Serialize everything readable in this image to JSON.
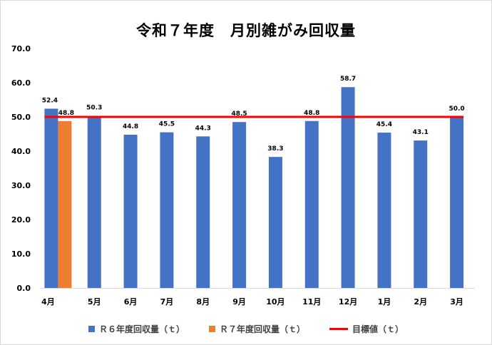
{
  "title": "令和７年度　月別雑がみ回収量",
  "chart_data": {
    "type": "bar",
    "categories": [
      "4月",
      "5月",
      "6月",
      "7月",
      "8月",
      "9月",
      "10月",
      "11月",
      "12月",
      "1月",
      "2月",
      "3月"
    ],
    "series": [
      {
        "name": "Ｒ６年度回収量（ｔ）",
        "values": [
          52.4,
          50.3,
          44.8,
          45.5,
          44.3,
          48.5,
          38.3,
          48.8,
          58.7,
          45.4,
          43.1,
          50.0
        ],
        "labels": [
          "52.4",
          "50.3",
          "44.8",
          "45.5",
          "44.3",
          "48.5",
          "38.3",
          "48.8",
          "58.7",
          "45.4",
          "43.1",
          "50.0"
        ],
        "color": "#4472c4"
      },
      {
        "name": "Ｒ７年度回収量（ｔ）",
        "values": [
          48.8,
          null,
          null,
          null,
          null,
          null,
          null,
          null,
          null,
          null,
          null,
          null
        ],
        "labels": [
          "48.8",
          null,
          null,
          null,
          null,
          null,
          null,
          null,
          null,
          null,
          null,
          null
        ],
        "color": "#ed7d31"
      }
    ],
    "target": {
      "name": "目標値（ｔ）",
      "value": 50.0,
      "color": "#ff0000"
    },
    "ylim": [
      0,
      70
    ],
    "yticks": [
      "0.0",
      "10.0",
      "20.0",
      "30.0",
      "40.0",
      "50.0",
      "60.0",
      "70.0"
    ],
    "grid": false,
    "legend": "bottom"
  }
}
